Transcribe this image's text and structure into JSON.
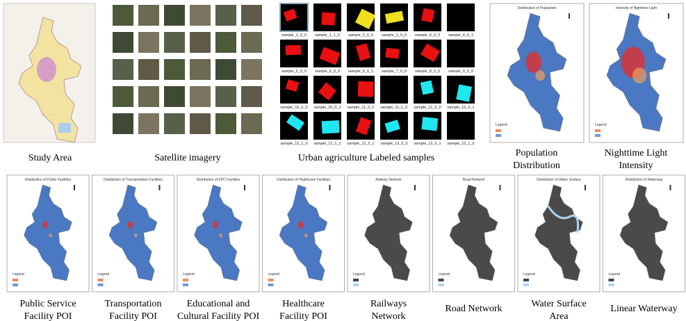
{
  "top": [
    {
      "caption": [
        "Study Area"
      ]
    },
    {
      "caption": [
        "Satellite imagery"
      ]
    },
    {
      "caption": [
        "Urban agriculture Labeled samples"
      ],
      "samples": [
        "sample_1_0_0",
        "sample_1_1_0",
        "sample_2_0_0",
        "sample_3_0_0",
        "sample_4_0_0",
        "sample_4_0_1",
        "sample_5_0_0",
        "sample_6_0_0",
        "sample_6_0_1",
        "sample_7_0_0",
        "sample_8_0_0",
        "sample_9_0_0",
        "sample_10_0_0",
        "sample_10_0_1",
        "sample_11_0_0",
        "sample_11_1_0",
        "sample_12_0_0",
        "sample_12_0_1",
        "sample_12_1_0",
        "sample_12_1_1",
        "sample_12_2_1",
        "sample_13_0_0",
        "sample_13_0_1",
        "sample_13_1_0"
      ]
    },
    {
      "caption": [
        "Population",
        "Distribution"
      ],
      "map_title": "Distribution of Population"
    },
    {
      "caption": [
        "Nighttime Light",
        "Intensity"
      ],
      "map_title": "Intensity of Nighttime Light"
    }
  ],
  "bottom": [
    {
      "caption": [
        "Public Service",
        "Facility POI"
      ],
      "map_title": "Distribution of Public Facilities"
    },
    {
      "caption": [
        "Transportation",
        "Facility POI"
      ],
      "map_title": "Distribution of Transportation Facilities"
    },
    {
      "caption": [
        "Educational and",
        "Cultural Facility POI"
      ],
      "map_title": "Distribution of EPC Facilities"
    },
    {
      "caption": [
        "Healthcare",
        "Facility POI"
      ],
      "map_title": "Distribution of Healthcare Facilities"
    },
    {
      "caption": [
        "Railways",
        "Network"
      ],
      "map_title": "Railway Network"
    },
    {
      "caption": [
        "Road Network"
      ],
      "map_title": "Road Network"
    },
    {
      "caption": [
        "Water Surface",
        "Area"
      ],
      "map_title": "Distribution of Water Surface"
    },
    {
      "caption": [
        "Linear Waterway"
      ],
      "map_title": "Distribution of Waterway"
    }
  ],
  "legend": "Legend"
}
